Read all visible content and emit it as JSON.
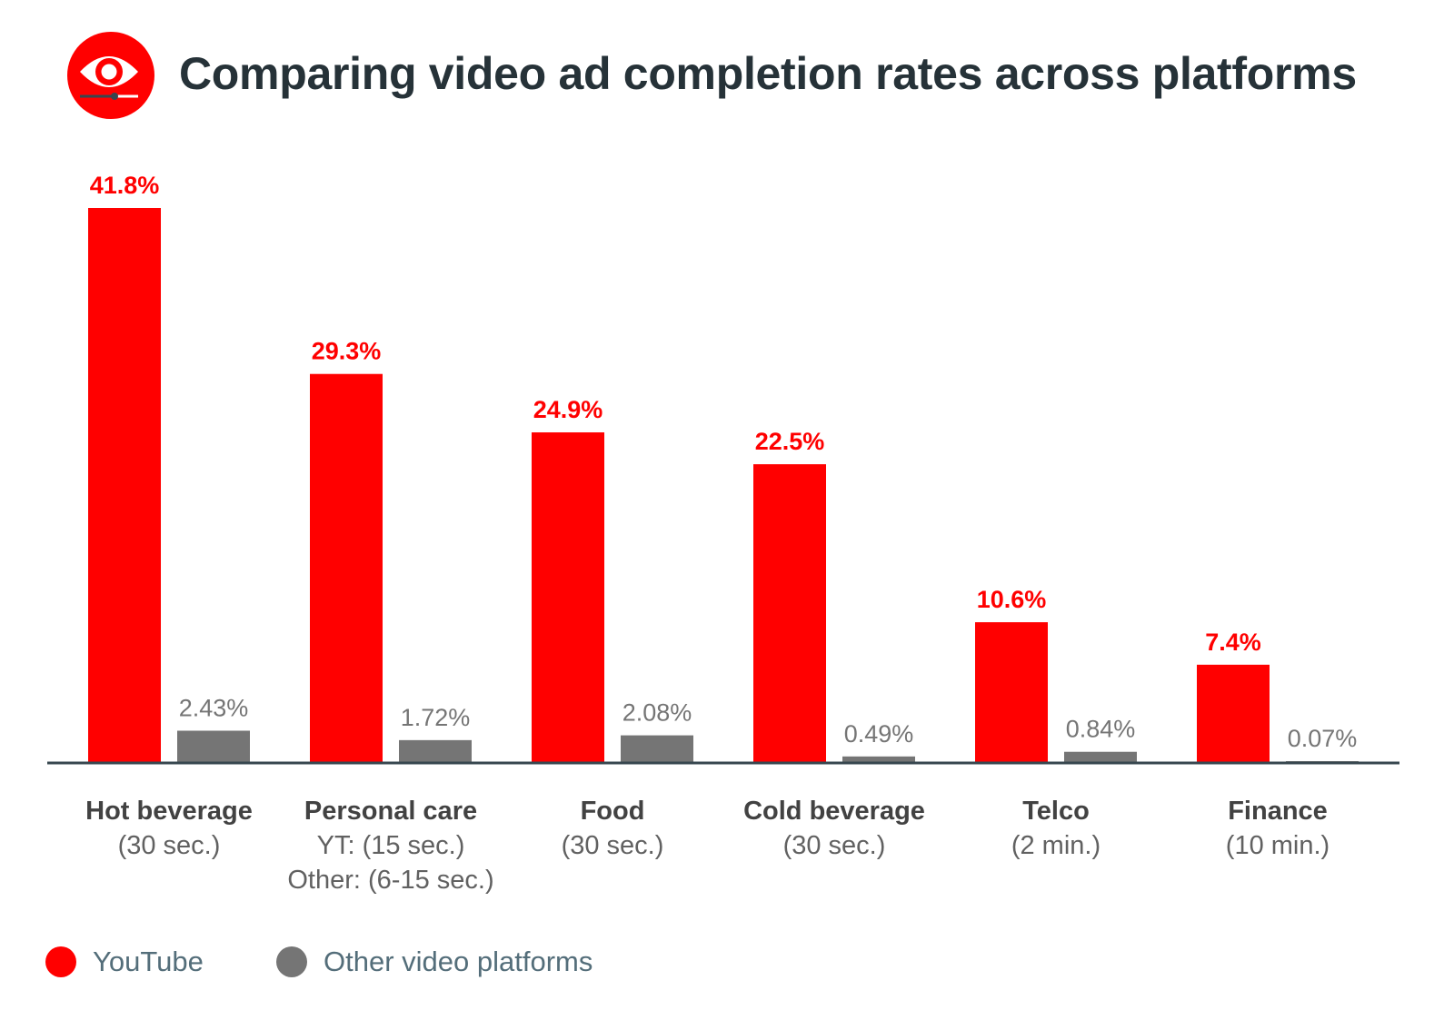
{
  "title": "Comparing video ad completion rates across platforms",
  "colors": {
    "brand": "#ff0000",
    "other": "#757575",
    "title": "#263238",
    "label": "#424242",
    "sub": "#616161",
    "axis": "#37474f",
    "legend_text": "#546e7a"
  },
  "legend": [
    {
      "label": "YouTube",
      "color": "#ff0000"
    },
    {
      "label": "Other video platforms",
      "color": "#757575"
    }
  ],
  "chart_data": {
    "type": "bar",
    "title": "Comparing video ad completion rates across platforms",
    "categories": [
      "Hot beverage",
      "Personal care",
      "Food",
      "Cold beverage",
      "Telco",
      "Finance"
    ],
    "category_sublabels": [
      [
        "(30 sec.)"
      ],
      [
        "YT: (15 sec.)",
        "Other: (6-15 sec.)"
      ],
      [
        "(30 sec.)"
      ],
      [
        "(30 sec.)"
      ],
      [
        "(2 min.)"
      ],
      [
        "(10 min.)"
      ]
    ],
    "series": [
      {
        "name": "YouTube",
        "color": "#ff0000",
        "values": [
          41.8,
          29.3,
          24.9,
          22.5,
          10.6,
          7.4
        ],
        "labels": [
          "41.8%",
          "29.3%",
          "24.9%",
          "22.5%",
          "10.6%",
          "7.4%"
        ]
      },
      {
        "name": "Other video platforms",
        "color": "#757575",
        "values": [
          2.43,
          1.72,
          2.08,
          0.49,
          0.84,
          0.07
        ],
        "labels": [
          "2.43%",
          "1.72%",
          "2.08%",
          "0.49%",
          "0.84%",
          "0.07%"
        ]
      }
    ],
    "xlabel": "",
    "ylabel": "",
    "ylim": [
      0,
      41.8
    ],
    "grid": false,
    "y_axis_visible": false,
    "legend_position": "bottom-left"
  }
}
